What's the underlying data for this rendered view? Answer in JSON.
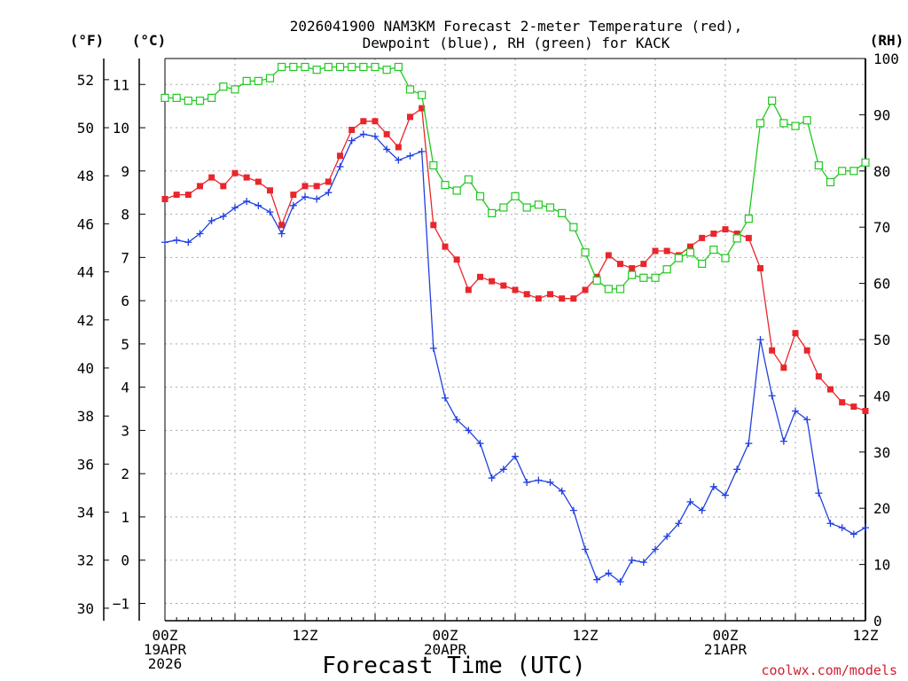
{
  "chart_data": {
    "type": "line",
    "title_line1": "2026041900 NAM3KM Forecast 2-meter Temperature (red),",
    "title_line2": "Dewpoint (blue), RH (green) for KACK",
    "xlabel": "Forecast Time (UTC)",
    "watermark": "coolwx.com/models",
    "units": {
      "fahrenheit": "(°F)",
      "celsius": "(°C)",
      "rh": "(RH)"
    },
    "x_hours": [
      0,
      1,
      2,
      3,
      4,
      5,
      6,
      7,
      8,
      9,
      10,
      11,
      12,
      13,
      14,
      15,
      16,
      17,
      18,
      19,
      20,
      21,
      22,
      23,
      24,
      25,
      26,
      27,
      28,
      29,
      30,
      31,
      32,
      33,
      34,
      35,
      36,
      37,
      38,
      39,
      40,
      41,
      42,
      43,
      44,
      45,
      46,
      47,
      48,
      49,
      50,
      51,
      52,
      53,
      54,
      55,
      56,
      57,
      58,
      59,
      60
    ],
    "xlim": [
      0,
      60
    ],
    "x_ticks": [
      {
        "hour": 0,
        "lines": [
          "00Z",
          "19APR",
          "2026"
        ]
      },
      {
        "hour": 12,
        "lines": [
          "12Z"
        ]
      },
      {
        "hour": 24,
        "lines": [
          "00Z",
          "20APR"
        ]
      },
      {
        "hour": 36,
        "lines": [
          "12Z"
        ]
      },
      {
        "hour": 48,
        "lines": [
          "00Z",
          "21APR"
        ]
      },
      {
        "hour": 60,
        "lines": [
          "12Z"
        ]
      }
    ],
    "celsius_axis": {
      "ylim": [
        -1.4,
        11.6
      ],
      "ticks": [
        -1,
        0,
        1,
        2,
        3,
        4,
        5,
        6,
        7,
        8,
        9,
        10,
        11
      ],
      "tick_labels": [
        "−1",
        "0",
        "1",
        "2",
        "3",
        "4",
        "5",
        "6",
        "7",
        "8",
        "9",
        "10",
        "11"
      ]
    },
    "fahrenheit_ticks": [
      30,
      32,
      34,
      36,
      38,
      40,
      42,
      44,
      46,
      48,
      50,
      52
    ],
    "rh_axis": {
      "ylim": [
        0,
        100
      ],
      "ticks": [
        0,
        10,
        20,
        30,
        40,
        50,
        60,
        70,
        80,
        90,
        100
      ]
    },
    "series": [
      {
        "name": "2-meter Temperature",
        "unit": "C",
        "color": "#e8262c",
        "marker": "filled-square",
        "values": [
          8.35,
          8.45,
          8.45,
          8.65,
          8.85,
          8.65,
          8.95,
          8.85,
          8.75,
          8.55,
          7.75,
          8.45,
          8.65,
          8.65,
          8.75,
          9.35,
          9.95,
          10.15,
          10.15,
          9.85,
          9.55,
          10.25,
          10.45,
          7.75,
          7.25,
          6.95,
          6.25,
          6.55,
          6.45,
          6.35,
          6.25,
          6.15,
          6.05,
          6.15,
          6.05,
          6.05,
          6.25,
          6.55,
          7.05,
          6.85,
          6.75,
          6.85,
          7.15,
          7.15,
          7.05,
          7.25,
          7.45,
          7.55,
          7.65,
          7.55,
          7.45,
          6.75,
          4.85,
          4.45,
          5.25,
          4.85,
          4.25,
          3.95,
          3.65,
          3.55,
          3.45
        ]
      },
      {
        "name": "Dewpoint",
        "unit": "C",
        "color": "#2040e0",
        "marker": "plus",
        "values": [
          7.35,
          7.4,
          7.35,
          7.55,
          7.85,
          7.95,
          8.15,
          8.3,
          8.2,
          8.05,
          7.55,
          8.2,
          8.4,
          8.35,
          8.5,
          9.1,
          9.7,
          9.85,
          9.8,
          9.5,
          9.25,
          9.35,
          9.45,
          4.9,
          3.75,
          3.25,
          3.0,
          2.7,
          1.9,
          2.1,
          2.4,
          1.8,
          1.85,
          1.8,
          1.6,
          1.15,
          0.25,
          -0.45,
          -0.3,
          -0.5,
          0.0,
          -0.05,
          0.25,
          0.55,
          0.85,
          1.35,
          1.15,
          1.7,
          1.5,
          2.1,
          2.7,
          5.1,
          3.8,
          2.75,
          3.45,
          3.25,
          1.55,
          0.85,
          0.75,
          0.6,
          0.75
        ]
      },
      {
        "name": "RH",
        "unit": "%",
        "color": "#20c820",
        "marker": "open-square",
        "values": [
          93,
          93,
          92.5,
          92.5,
          93,
          95,
          94.5,
          96,
          96,
          96.5,
          98.5,
          98.5,
          98.5,
          98,
          98.5,
          98.5,
          98.5,
          98.5,
          98.5,
          98,
          98.5,
          94.5,
          93.5,
          81,
          77.5,
          76.5,
          78.5,
          75.5,
          72.5,
          73.5,
          75.5,
          73.5,
          74,
          73.5,
          72.5,
          70,
          65.5,
          60.5,
          59,
          59,
          61.5,
          61,
          61,
          62.5,
          64.5,
          65.5,
          63.5,
          66,
          64.5,
          68,
          71.5,
          88.5,
          92.5,
          88.5,
          88,
          89,
          81,
          78,
          80,
          80,
          81.5
        ]
      }
    ]
  }
}
